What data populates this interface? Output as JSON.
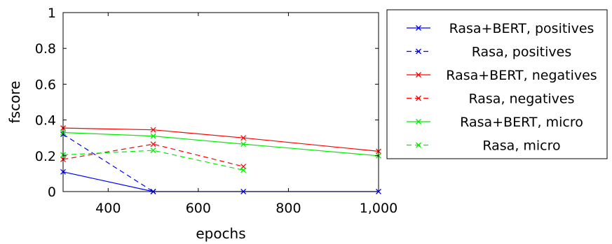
{
  "chart_data": {
    "type": "line",
    "xlabel": "epochs",
    "ylabel": "fscore",
    "xlim": [
      300,
      1000
    ],
    "ylim": [
      0,
      1
    ],
    "x_ticks": [
      "400",
      "600",
      "800",
      "1,000"
    ],
    "x_tick_values": [
      400,
      600,
      800,
      1000
    ],
    "y_ticks": [
      "0",
      "0.2",
      "0.4",
      "0.6",
      "0.8",
      "1"
    ],
    "y_tick_values": [
      0,
      0.2,
      0.4,
      0.6,
      0.8,
      1
    ],
    "legend_position": "right-outside",
    "series": [
      {
        "name": "Rasa+BERT, positives",
        "color": "#0000ff",
        "dashed": false,
        "x": [
          300,
          500,
          700,
          1000
        ],
        "y": [
          0.11,
          0.0,
          0.0,
          0.0
        ]
      },
      {
        "name": "Rasa, positives",
        "color": "#0000ff",
        "dashed": true,
        "x": [
          300,
          500
        ],
        "y": [
          0.32,
          0.0
        ]
      },
      {
        "name": "Rasa+BERT, negatives",
        "color": "#ff0000",
        "dashed": false,
        "x": [
          300,
          500,
          700,
          1000
        ],
        "y": [
          0.355,
          0.345,
          0.3,
          0.225
        ]
      },
      {
        "name": "Rasa, negatives",
        "color": "#ff0000",
        "dashed": true,
        "x": [
          300,
          500,
          700
        ],
        "y": [
          0.18,
          0.265,
          0.14
        ]
      },
      {
        "name": "Rasa+BERT, micro",
        "color": "#00ee00",
        "dashed": false,
        "x": [
          300,
          500,
          700,
          1000
        ],
        "y": [
          0.33,
          0.31,
          0.265,
          0.2
        ]
      },
      {
        "name": "Rasa, micro",
        "color": "#00ee00",
        "dashed": true,
        "x": [
          300,
          500,
          700
        ],
        "y": [
          0.205,
          0.23,
          0.12
        ]
      }
    ]
  }
}
